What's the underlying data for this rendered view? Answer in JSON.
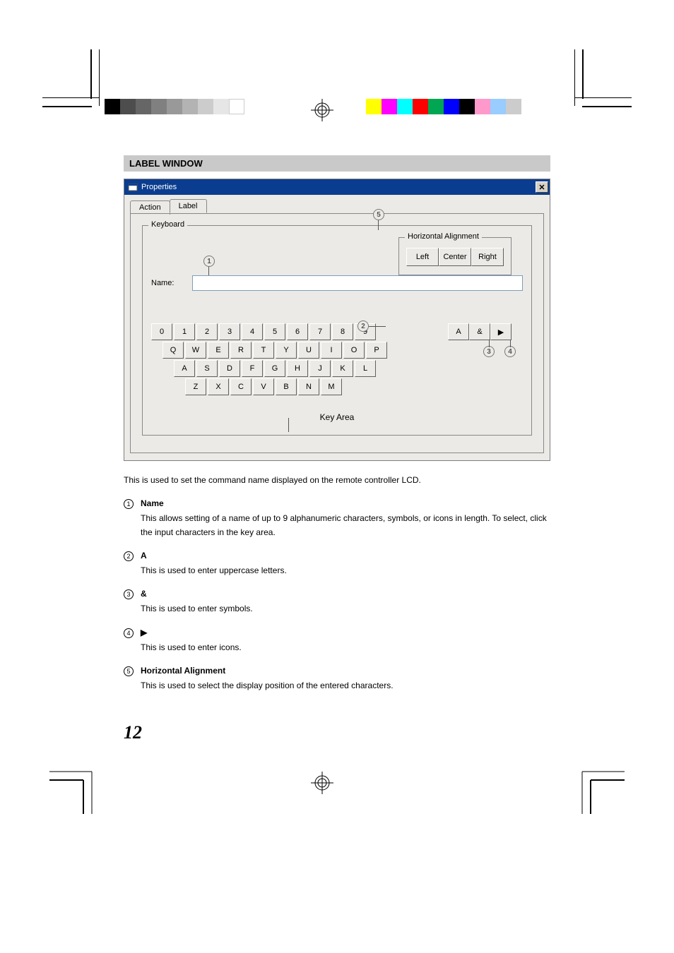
{
  "section_header": "LABEL WINDOW",
  "window": {
    "title": "Properties",
    "tabs": {
      "action": "Action",
      "label": "Label"
    },
    "keyboard_legend": "Keyboard",
    "name_label": "Name:",
    "alignment": {
      "legend": "Horizontal Alignment",
      "left": "Left",
      "center": "Center",
      "right": "Right"
    },
    "mode": {
      "upper": "A",
      "symbol": "&",
      "icon": "▶"
    },
    "keys": {
      "row1": [
        "0",
        "1",
        "2",
        "3",
        "4",
        "5",
        "6",
        "7",
        "8",
        "9"
      ],
      "row2": [
        "Q",
        "W",
        "E",
        "R",
        "T",
        "Y",
        "U",
        "I",
        "O",
        "P"
      ],
      "row3": [
        "A",
        "S",
        "D",
        "F",
        "G",
        "H",
        "J",
        "K",
        "L"
      ],
      "row4": [
        "Z",
        "X",
        "C",
        "V",
        "B",
        "N",
        "M"
      ]
    },
    "key_area_label": "Key Area",
    "callouts": {
      "c1": "1",
      "c2": "2",
      "c3": "3",
      "c4": "4",
      "c5": "5"
    }
  },
  "description": "This is used to set the command name displayed on the remote controller LCD.",
  "items": [
    {
      "num": "1",
      "title": "Name",
      "text": "This allows setting of a name of up to 9 alphanumeric characters, symbols, or icons in length. To select, click the input characters in the key area."
    },
    {
      "num": "2",
      "title": "A",
      "text": "This is used to enter uppercase letters."
    },
    {
      "num": "3",
      "title": "&",
      "text": "This is used to enter symbols."
    },
    {
      "num": "4",
      "title": "▶",
      "text": "This is used to enter icons."
    },
    {
      "num": "5",
      "title": "Horizontal Alignment",
      "text": "This is used to select the display position of the entered characters."
    }
  ],
  "page_number": "12",
  "colorbars": {
    "left": [
      "#000000",
      "#4d4d4d",
      "#666666",
      "#808080",
      "#999999",
      "#b3b3b3",
      "#cccccc",
      "#e6e6e6",
      "#ffffff"
    ],
    "right": [
      "#ffff00",
      "#ff00ff",
      "#00ffff",
      "#ff0000",
      "#00a651",
      "#0000ff",
      "#000000",
      "#ff99cc",
      "#99ccff",
      "#cccccc"
    ]
  }
}
